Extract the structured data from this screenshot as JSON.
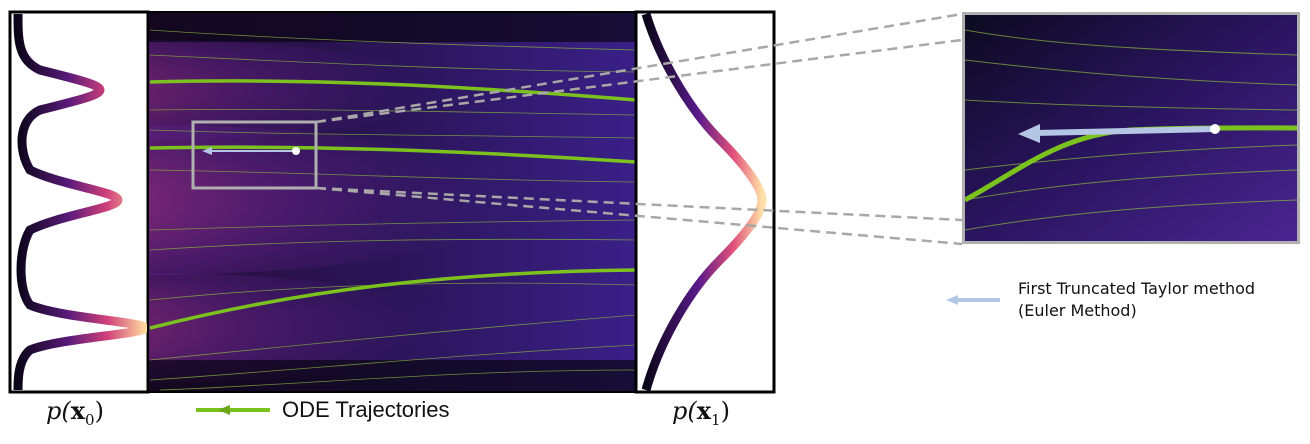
{
  "labels": {
    "p_x0": {
      "func": "p(",
      "var": "x",
      "sub": "0",
      "close": ")"
    },
    "p_x1": {
      "func": "p(",
      "var": "x",
      "sub": "1",
      "close": ")"
    }
  },
  "legend": {
    "ode": "ODE Trajectories",
    "euler_line1": "First Truncated Taylor method",
    "euler_line2": "(Euler Method)"
  },
  "colors": {
    "trajectory": "#7cc21e",
    "euler_arrow": "#b4c6e4",
    "zoom_box": "#b0b0b0",
    "background_dark": "#120a24"
  }
}
